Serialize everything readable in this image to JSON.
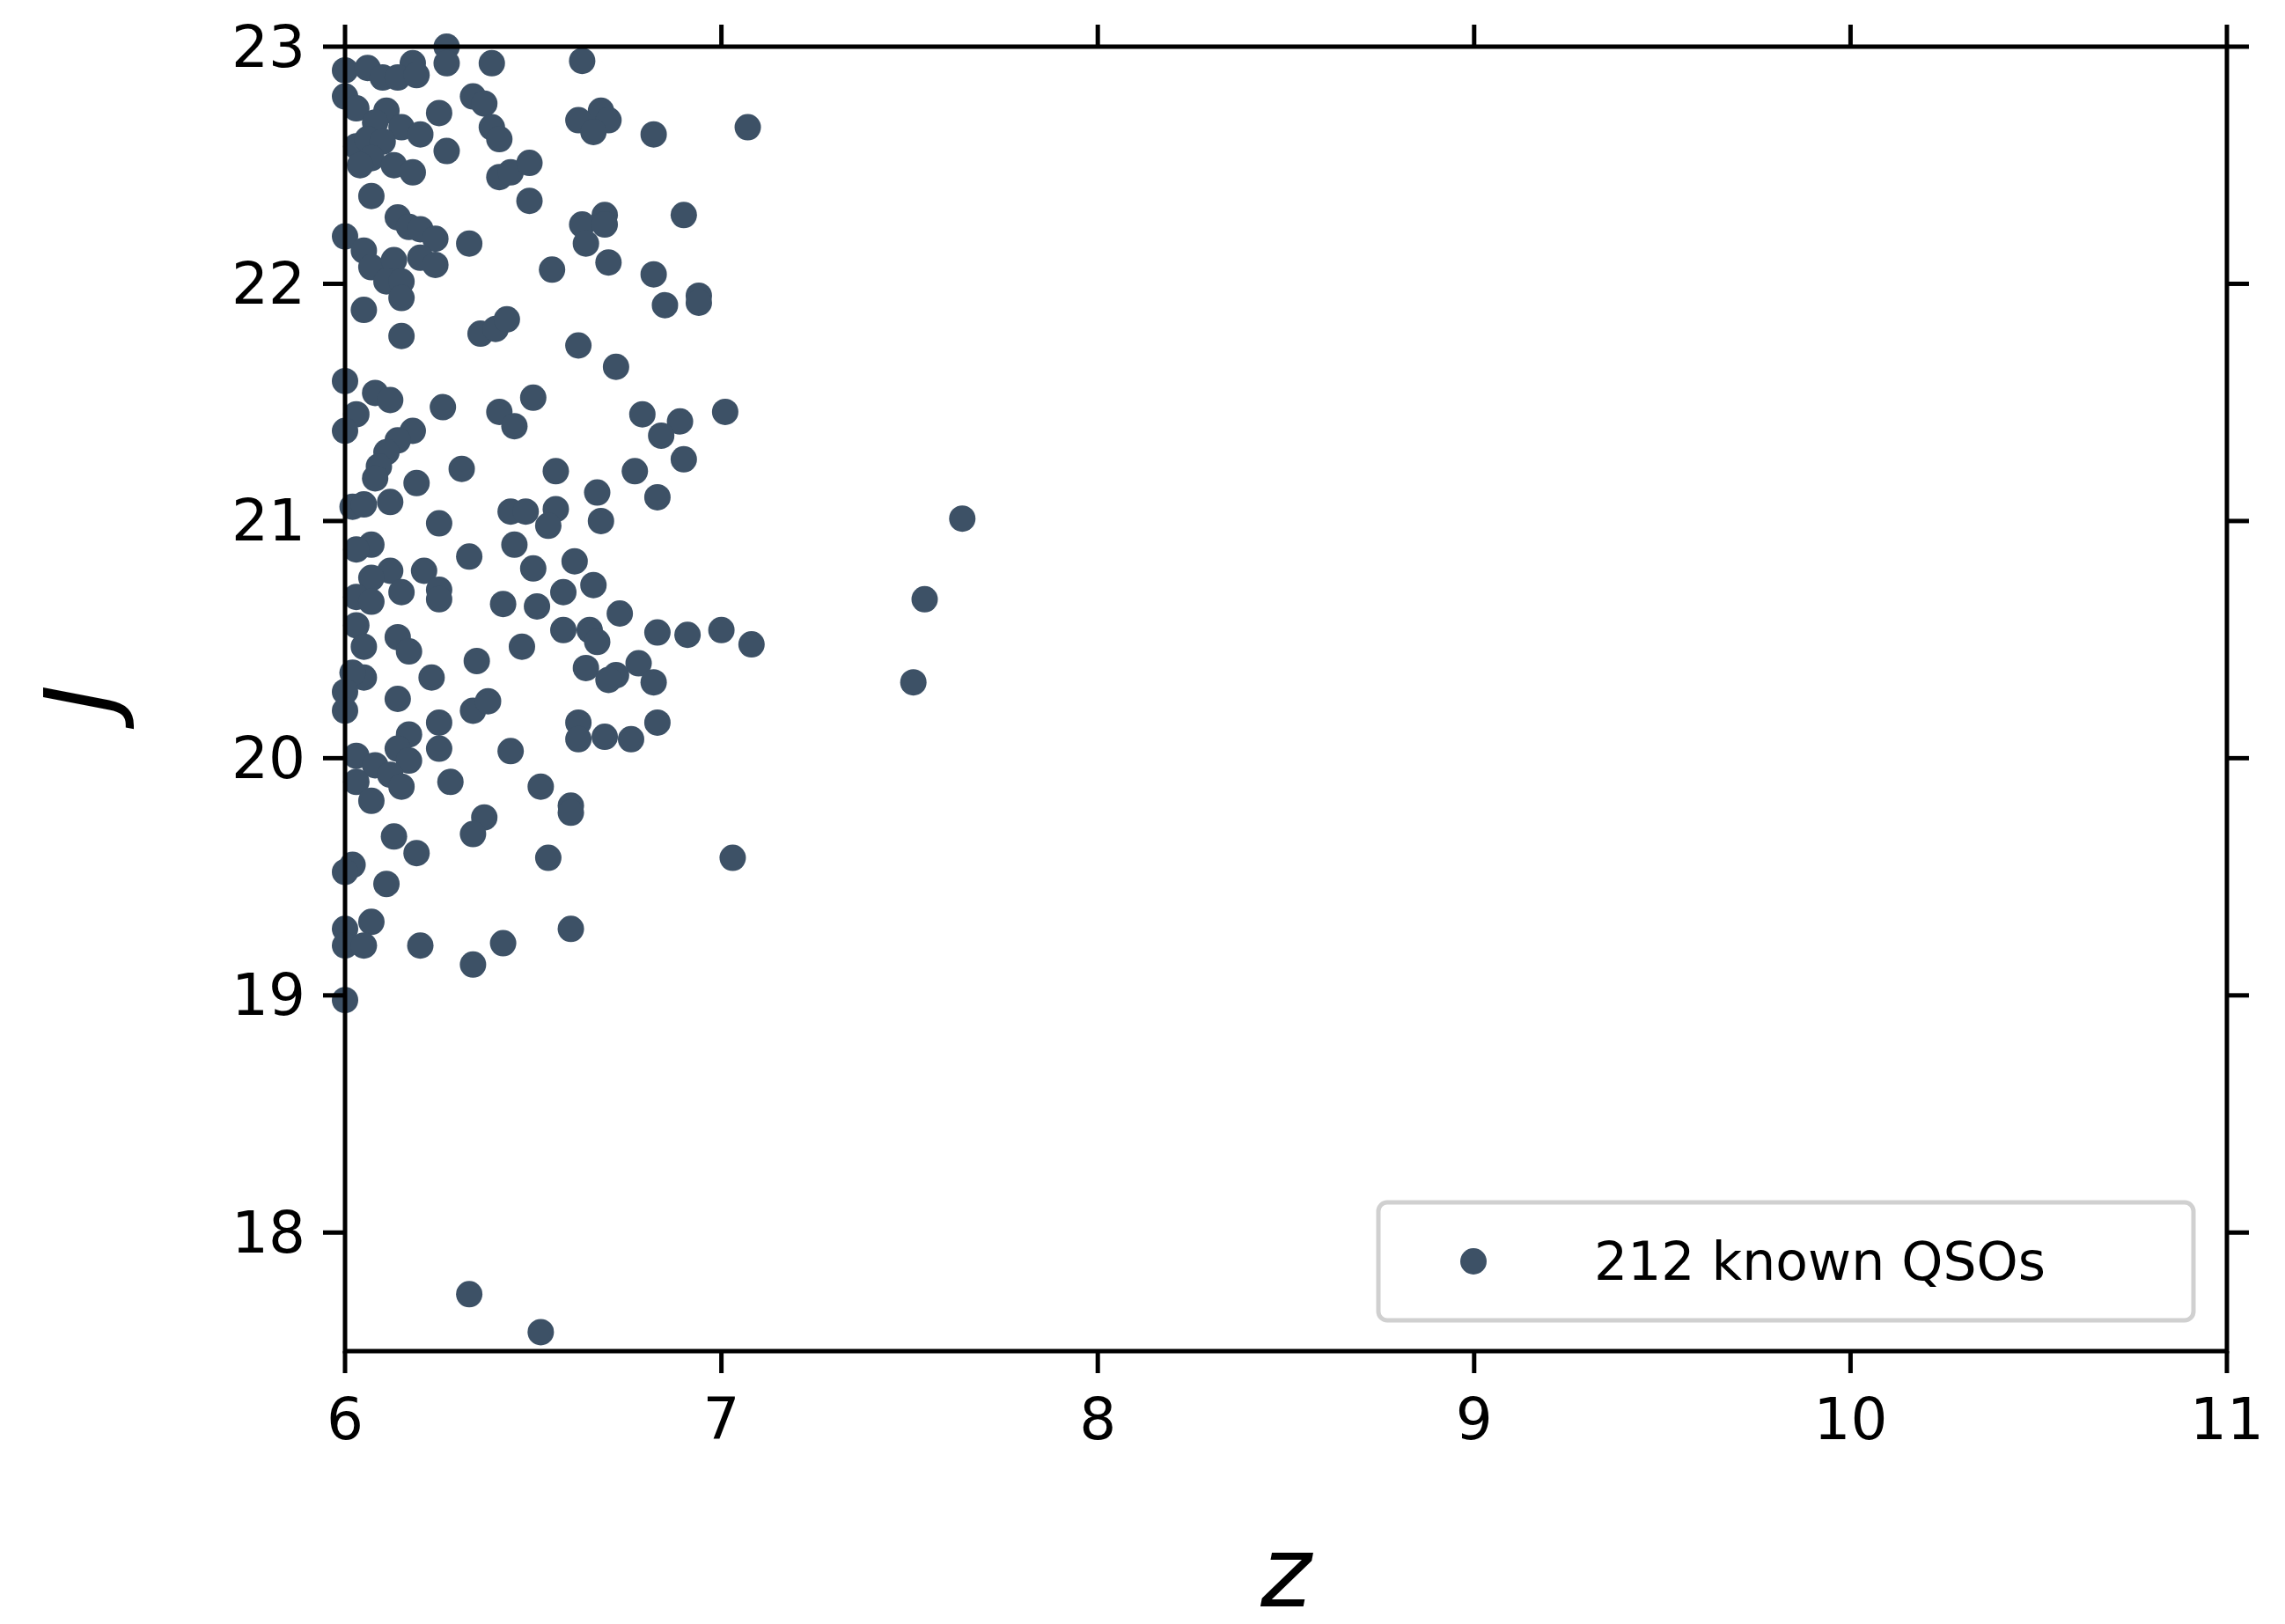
{
  "chart_data": {
    "type": "scatter",
    "xlabel": "z",
    "ylabel": "J",
    "xlim": [
      6,
      11
    ],
    "ylim": [
      17.5,
      23
    ],
    "xticks": [
      6,
      7,
      8,
      9,
      10,
      11
    ],
    "yticks": [
      18,
      19,
      20,
      21,
      22,
      23
    ],
    "grid": false,
    "legend": "bottom right",
    "marker": "circle",
    "series": [
      {
        "name": "212 known QSOs",
        "color": "#3d5166",
        "x": [
          6.27,
          6.0,
          6.06,
          6.18,
          6.27,
          6.39,
          6.63,
          6.1,
          6.14,
          6.19,
          6.0,
          6.34,
          6.37,
          6.03,
          6.11,
          6.25,
          6.68,
          6.62,
          6.7,
          6.66,
          7.07,
          6.82,
          6.08,
          6.15,
          6.2,
          6.39,
          6.41,
          6.03,
          6.06,
          6.1,
          6.27,
          6.07,
          6.04,
          6.13,
          6.18,
          6.41,
          6.44,
          6.49,
          6.07,
          6.49,
          6.0,
          6.14,
          6.17,
          6.2,
          6.24,
          6.33,
          6.63,
          6.69,
          6.69,
          6.9,
          6.64,
          6.05,
          6.07,
          6.13,
          6.2,
          6.24,
          6.55,
          6.7,
          6.11,
          6.15,
          6.15,
          6.82,
          6.94,
          6.85,
          6.94,
          6.05,
          6.15,
          6.36,
          6.4,
          6.43,
          6.62,
          6.72,
          6.0,
          6.08,
          6.12,
          6.26,
          6.5,
          6.41,
          6.79,
          7.01,
          6.89,
          6.84,
          6.45,
          6.03,
          6.0,
          6.18,
          6.14,
          6.11,
          6.09,
          6.31,
          6.56,
          6.77,
          6.9,
          6.08,
          6.19,
          6.12,
          6.67,
          6.83,
          6.56,
          6.44,
          6.48,
          6.02,
          6.05,
          6.25,
          6.68,
          6.54,
          7.64,
          6.07,
          6.03,
          6.45,
          6.33,
          6.61,
          6.5,
          6.21,
          6.12,
          6.07,
          6.03,
          6.07,
          6.15,
          6.25,
          6.25,
          6.42,
          6.51,
          6.58,
          6.66,
          6.73,
          7.54,
          6.03,
          6.14,
          6.17,
          6.05,
          6.58,
          6.65,
          6.67,
          6.83,
          6.91,
          7.0,
          7.08,
          6.47,
          6.35,
          6.78,
          6.64,
          6.72,
          6.7,
          6.82,
          7.51,
          6.23,
          6.05,
          6.02,
          6.0,
          6.0,
          6.14,
          6.34,
          6.38,
          6.25,
          6.62,
          6.83,
          6.17,
          6.69,
          6.62,
          6.76,
          6.03,
          6.25,
          6.14,
          6.44,
          6.08,
          6.17,
          6.12,
          6.03,
          6.15,
          6.28,
          6.52,
          6.07,
          6.37,
          6.6,
          6.6,
          6.13,
          6.34,
          6.19,
          6.54,
          7.03,
          6.02,
          6.0,
          6.11,
          6.07,
          6.0,
          6.6,
          6.0,
          6.05,
          6.2,
          6.42,
          6.34,
          6.0,
          6.33,
          6.52
        ],
        "values": [
          23.0,
          22.9,
          22.91,
          22.93,
          22.93,
          22.93,
          22.94,
          22.87,
          22.87,
          22.88,
          22.79,
          22.79,
          22.76,
          22.74,
          22.73,
          22.72,
          22.73,
          22.69,
          22.69,
          22.64,
          22.66,
          22.63,
          22.68,
          22.66,
          22.63,
          22.66,
          22.61,
          22.58,
          22.61,
          22.6,
          22.56,
          22.53,
          22.5,
          22.5,
          22.47,
          22.45,
          22.47,
          22.51,
          22.37,
          22.35,
          22.2,
          22.28,
          22.24,
          22.23,
          22.19,
          22.17,
          22.25,
          22.29,
          22.25,
          22.29,
          22.17,
          22.14,
          22.07,
          22.1,
          22.11,
          22.08,
          22.06,
          22.09,
          22.01,
          22.01,
          21.94,
          22.04,
          21.95,
          21.91,
          21.92,
          21.89,
          21.78,
          21.79,
          21.81,
          21.85,
          21.74,
          21.65,
          21.59,
          21.54,
          21.51,
          21.48,
          21.52,
          21.46,
          21.45,
          21.46,
          21.42,
          21.36,
          21.4,
          21.45,
          21.38,
          21.38,
          21.34,
          21.29,
          21.23,
          21.22,
          21.21,
          21.21,
          21.26,
          21.18,
          21.16,
          21.08,
          21.12,
          21.1,
          21.05,
          21.04,
          21.04,
          21.06,
          21.07,
          20.99,
          21.0,
          20.98,
          21.01,
          20.9,
          20.88,
          20.9,
          20.85,
          20.83,
          20.8,
          20.79,
          20.79,
          20.76,
          20.68,
          20.66,
          20.7,
          20.71,
          20.67,
          20.65,
          20.64,
          20.7,
          20.73,
          20.61,
          20.67,
          20.56,
          20.51,
          20.45,
          20.47,
          20.54,
          20.54,
          20.49,
          20.53,
          20.52,
          20.54,
          20.48,
          20.47,
          20.41,
          20.4,
          20.38,
          20.35,
          20.33,
          20.32,
          20.32,
          20.34,
          20.34,
          20.36,
          20.28,
          20.2,
          20.25,
          20.2,
          20.24,
          20.15,
          20.15,
          20.15,
          20.1,
          20.09,
          20.08,
          20.08,
          20.01,
          20.04,
          20.04,
          20.03,
          19.97,
          19.99,
          19.93,
          19.9,
          19.88,
          19.9,
          19.88,
          19.82,
          19.75,
          19.8,
          19.77,
          19.67,
          19.68,
          19.6,
          19.58,
          19.58,
          19.55,
          19.52,
          19.47,
          19.31,
          19.28,
          19.28,
          19.21,
          19.21,
          19.21,
          19.22,
          19.13,
          18.98,
          17.74,
          17.58
        ]
      }
    ]
  }
}
